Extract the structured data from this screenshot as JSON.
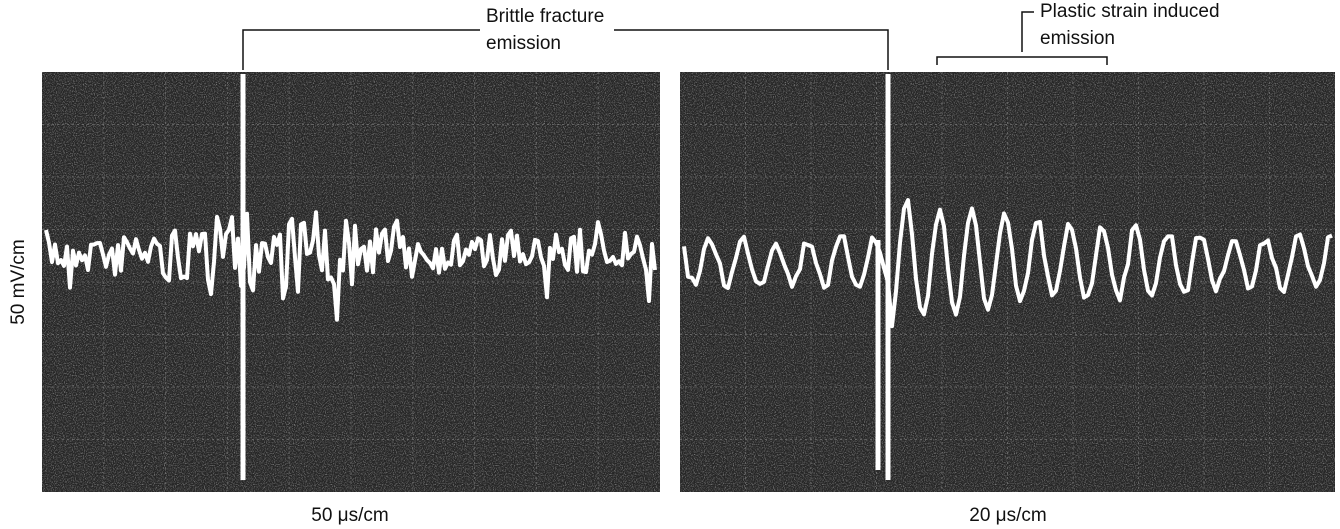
{
  "y_axis_label": "50 mV/cm",
  "panels": [
    {
      "x_axis_label": "50 μs/cm"
    },
    {
      "x_axis_label": "20 μs/cm"
    }
  ],
  "annotations": [
    {
      "lines": [
        "Brittle fracture",
        "emission"
      ]
    },
    {
      "lines": [
        "Plastic strain induced",
        "emission"
      ]
    }
  ]
}
